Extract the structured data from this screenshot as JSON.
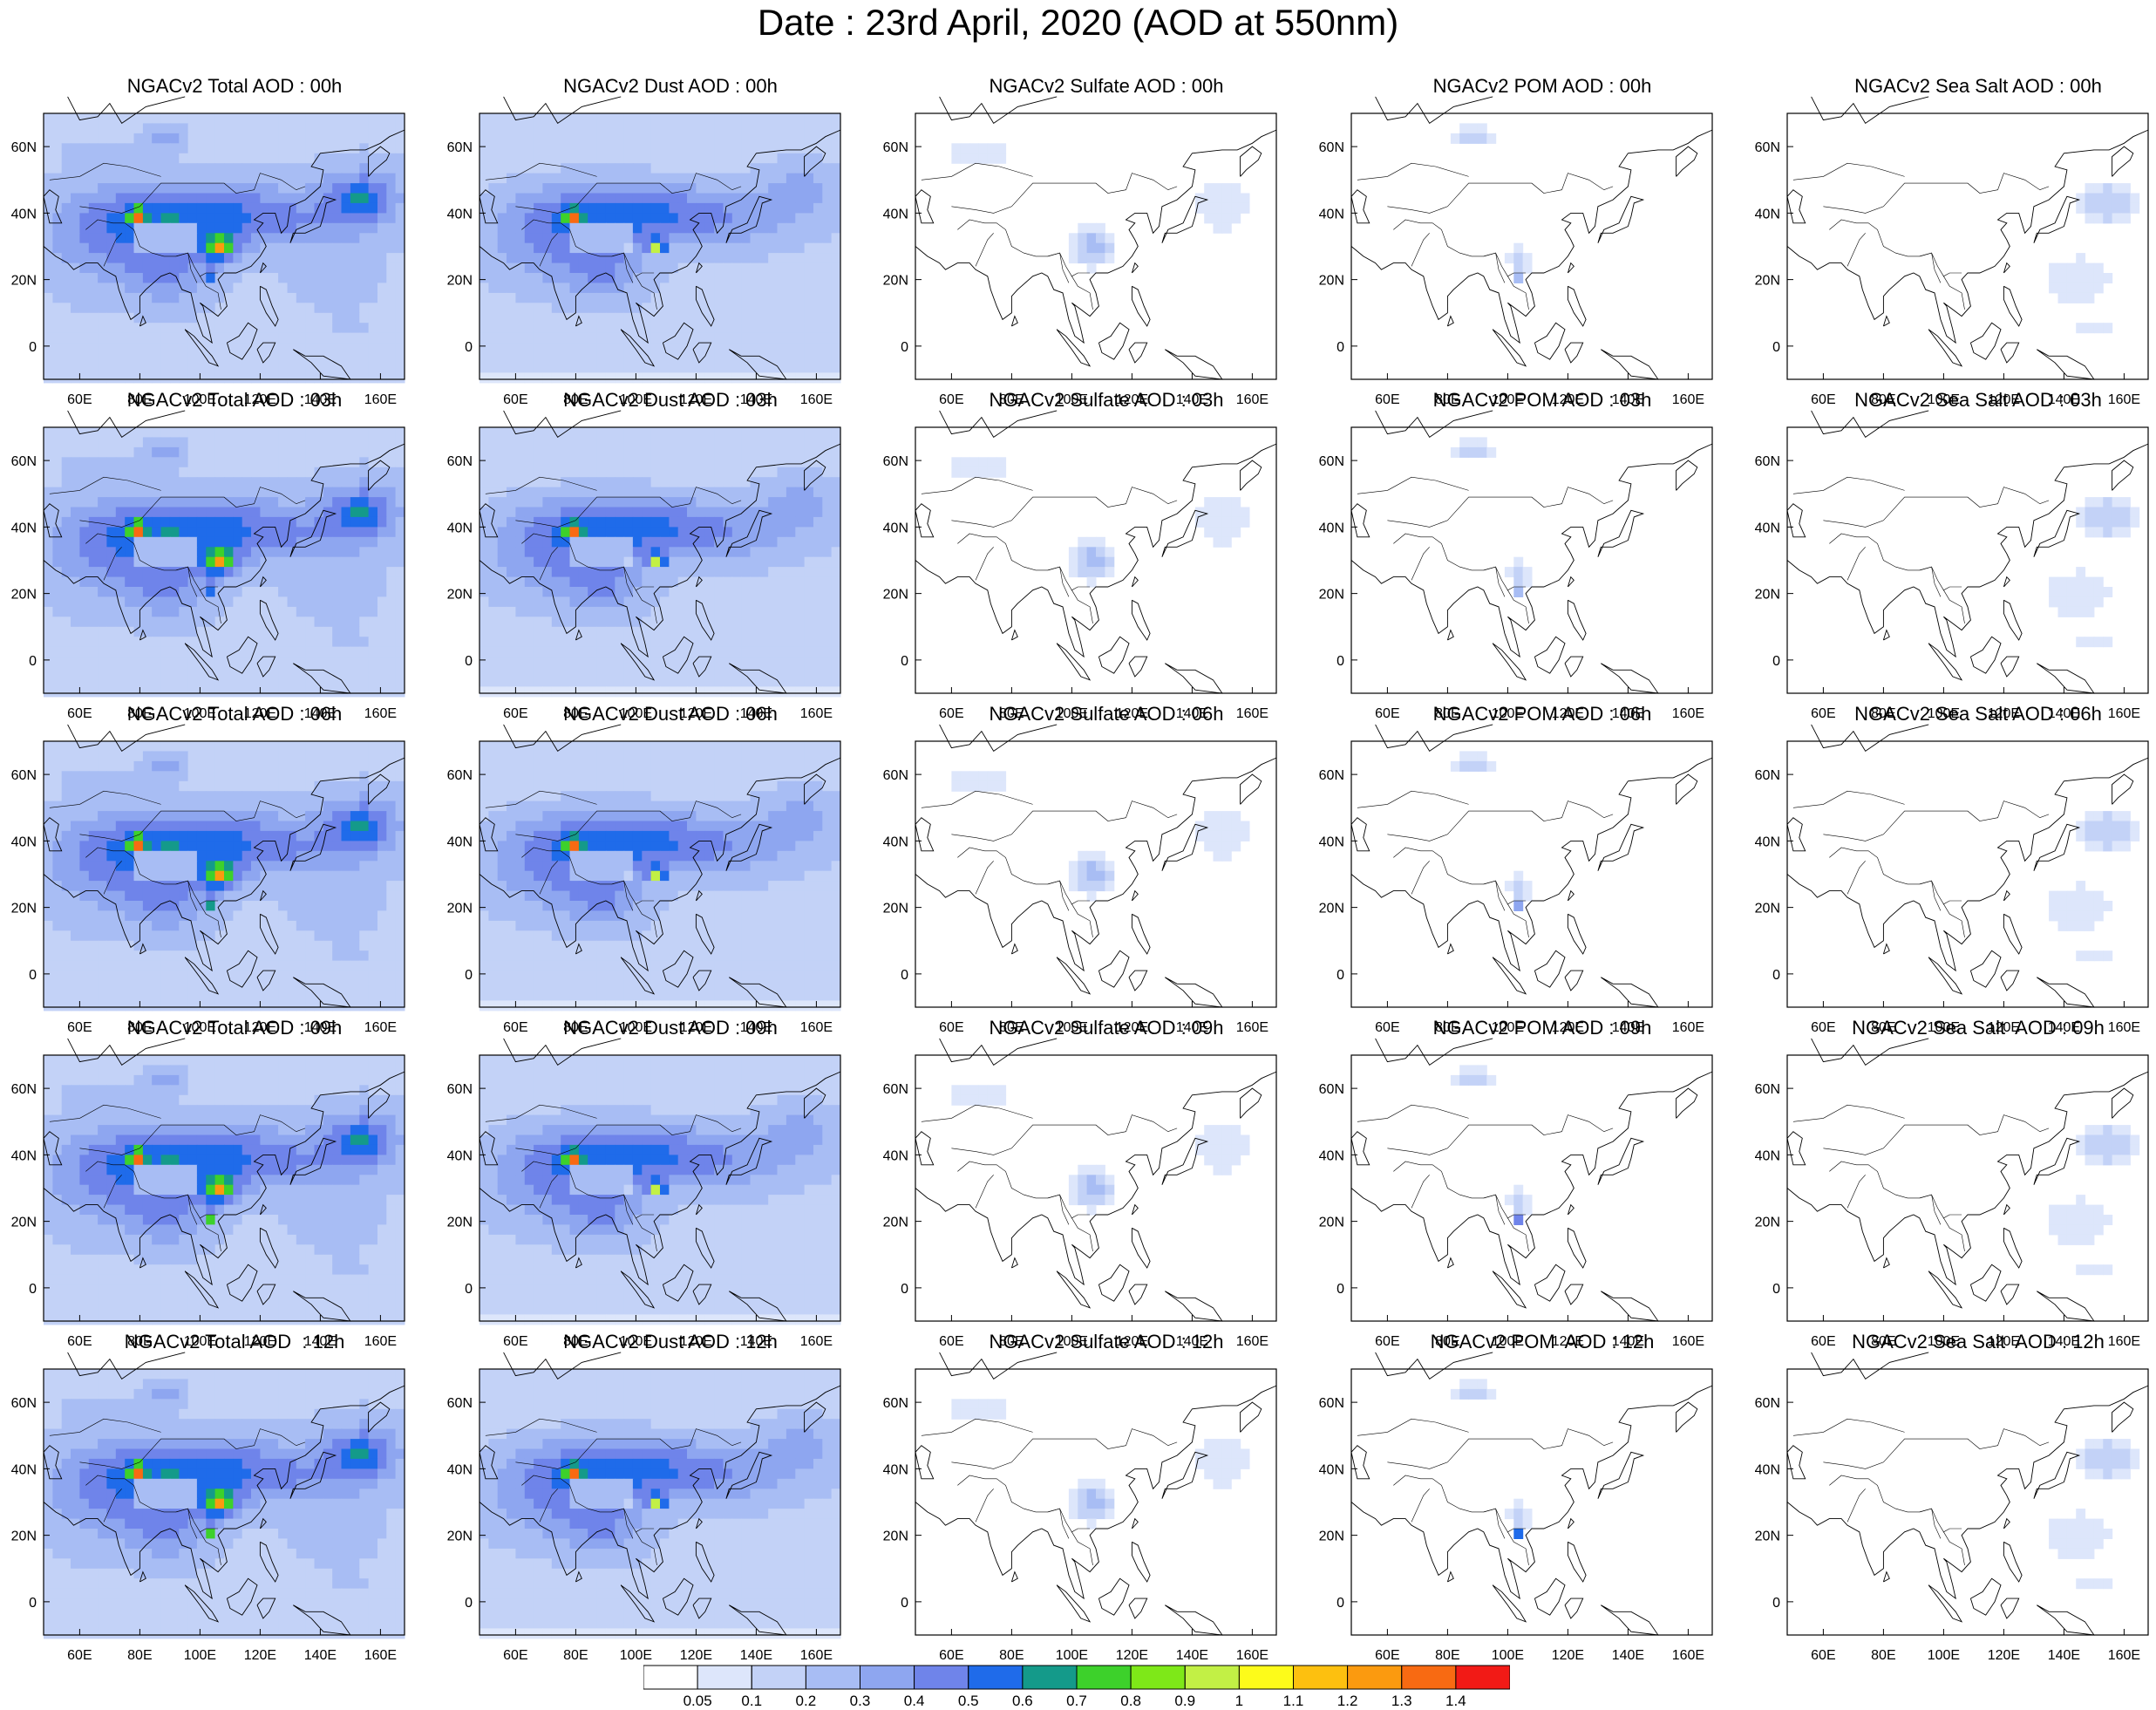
{
  "title": "Date : 23rd April, 2020 (AOD at 550nm)",
  "row_hours": [
    "00h",
    "03h",
    "06h",
    "09h",
    "12h"
  ],
  "panel_titles": [
    [
      "NGACv2 Total AOD : 00h",
      "NGACv2 Dust AOD : 00h",
      "NGACv2 Sulfate AOD : 00h",
      "NGACv2 POM AOD : 00h",
      "NGACv2 Sea Salt AOD : 00h"
    ],
    [
      "NGACv2 Total AOD : 03h",
      "NGACv2 Dust AOD : 03h",
      "NGACv2 Sulfate AOD : 03h",
      "NGACv2 POM AOD : 03h",
      "NGACv2 Sea Salt AOD : 03h"
    ],
    [
      "NGACv2 Total AOD : 06h",
      "NGACv2 Dust AOD : 06h",
      "NGACv2 Sulfate AOD : 06h",
      "NGACv2 POM AOD : 06h",
      "NGACv2 Sea Salt AOD : 06h"
    ],
    [
      "NGACv2 Total AOD : 09h",
      "NGACv2 Dust AOD : 09h",
      "NGACv2 Sulfate AOD : 09h",
      "NGACv2 POM AOD : 09h",
      "NGACv2 Sea Salt  AOD : 09h"
    ],
    [
      "NGACv2 Total AOD  : 12h",
      "NGACv2 Dust AOD : 12h",
      "NGACv2 Sulfate AOD : 12h",
      "NGACv2 POM  AOD : 12h",
      "NGACv2 Sea Salt  AOD : 12h"
    ]
  ],
  "axes": {
    "lon_ticks": [
      "60E",
      "80E",
      "100E",
      "120E",
      "140E",
      "160E"
    ],
    "lat_ticks": [
      "60N",
      "40N",
      "20N",
      "0"
    ],
    "lon_range": [
      48,
      168
    ],
    "lat_range": [
      -10,
      70
    ]
  },
  "colorbar": {
    "labels": [
      "0.05",
      "0.1",
      "0.2",
      "0.3",
      "0.4",
      "0.5",
      "0.6",
      "0.7",
      "0.8",
      "0.9",
      "1",
      "1.1",
      "1.2",
      "1.3",
      "1.4"
    ],
    "colors": [
      "#ffffff",
      "#dde6fb",
      "#c3d2f7",
      "#a8bdf4",
      "#8ea6f0",
      "#6f84ea",
      "#1f6bea",
      "#149a8a",
      "#3dd12b",
      "#7ee818",
      "#c2f045",
      "#fdfb1a",
      "#fdc00f",
      "#fb9a0f",
      "#f86a12",
      "#f21a16"
    ]
  },
  "fields": {
    "total": {
      "base": 0.18,
      "dust": 1.0,
      "sulf": 1.0,
      "pom": 1.0,
      "salt": 1.0
    },
    "dust": {
      "base": 0.16,
      "dust": 1.0,
      "sulf": 0.0,
      "pom": 0.0,
      "salt": 0.0
    },
    "sulfate": {
      "base": 0.0,
      "dust": 0.0,
      "sulf": 1.0,
      "pom": 0.0,
      "salt": 0.0
    },
    "pom": {
      "base": 0.0,
      "dust": 0.0,
      "sulf": 0.0,
      "pom": 1.0,
      "salt": 0.0
    },
    "seasalt": {
      "base": 0.0,
      "dust": 0.0,
      "sulf": 0.0,
      "pom": 0.0,
      "salt": 1.0
    }
  },
  "hotspots": {
    "taklimakan_lonlat": [
      79,
      39
    ],
    "sichuan_lonlat": [
      106,
      30
    ],
    "myanmar_lonlat": [
      104,
      21
    ],
    "siberia_lonlat": [
      86,
      63
    ]
  }
}
